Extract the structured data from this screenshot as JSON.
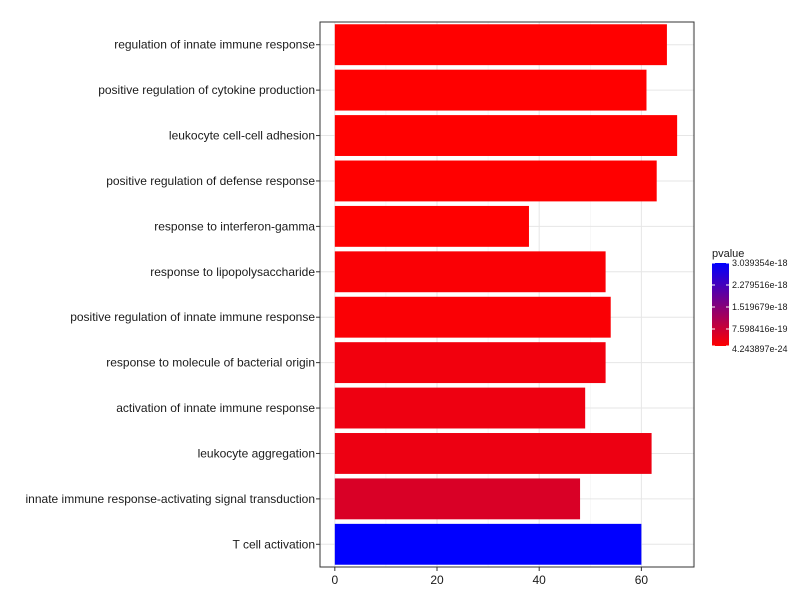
{
  "chart_data": {
    "type": "bar",
    "orientation": "horizontal",
    "categories": [
      "regulation of innate immune response",
      "positive regulation of cytokine production",
      "leukocyte cell-cell adhesion",
      "positive regulation of defense response",
      "response to interferon-gamma",
      "response to lipopolysaccharide",
      "positive regulation of innate immune response",
      "response to molecule of bacterial origin",
      "activation of innate immune response",
      "leukocyte aggregation",
      "innate immune response-activating signal transduction",
      "T cell activation"
    ],
    "values": [
      65,
      61,
      67,
      63,
      38,
      53,
      54,
      53,
      49,
      62,
      48,
      60
    ],
    "pvalue": [
      4.243897e-24,
      4.3e-24,
      4.25e-24,
      4.28e-24,
      4.3e-24,
      6e-20,
      6.5e-20,
      1.5e-19,
      2e-19,
      2.2e-19,
      4.5e-19,
      3.039354e-18
    ],
    "xlabel": "",
    "ylabel": "",
    "xlim": [
      -2.9,
      70.3
    ],
    "x_ticks": [
      "0",
      "20",
      "40",
      "60"
    ],
    "grid": true,
    "legend": {
      "title": "pvalue",
      "position": "right",
      "labels": [
        "3.039354e-18",
        "2.279516e-18",
        "1.519679e-18",
        "7.598416e-19",
        "4.243897e-24"
      ],
      "low_color": "#ff0000",
      "high_color": "#0000ff"
    }
  }
}
